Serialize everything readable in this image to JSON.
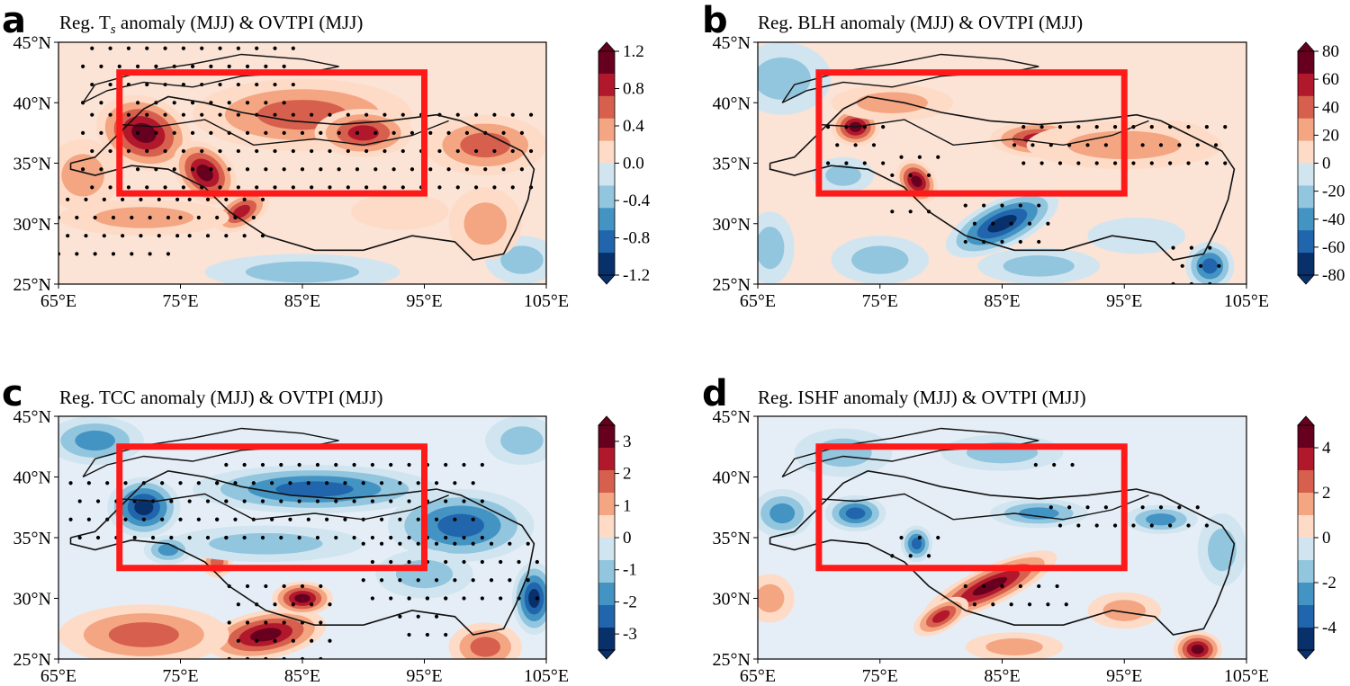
{
  "chart_data": [
    {
      "type": "heatmap",
      "panel": "a",
      "title_parts": [
        "Reg. T",
        "s",
        " anomaly (MJJ) & OVTPI (MJJ)"
      ],
      "xticks": [
        "65°E",
        "75°E",
        "85°E",
        "95°E",
        "105°E"
      ],
      "yticks": [
        "45°N",
        "40°N",
        "35°N",
        "30°N",
        "25°N"
      ],
      "xlim": [
        65,
        105
      ],
      "ylim": [
        25,
        45
      ],
      "colorbar_ticks": [
        "1.2",
        "0.8",
        "0.4",
        "0.0",
        "-0.4",
        "-0.8",
        "-1.2"
      ],
      "colorbar_range": [
        -1.2,
        1.2
      ],
      "box": {
        "lon": [
          70,
          95
        ],
        "lat": [
          32.5,
          42.5
        ]
      },
      "sign": 1
    },
    {
      "type": "heatmap",
      "panel": "b",
      "title_parts": [
        "Reg. BLH anomaly (MJJ) & OVTPI (MJJ)"
      ],
      "xticks": [
        "65°E",
        "75°E",
        "85°E",
        "95°E",
        "105°E"
      ],
      "yticks": [
        "45°N",
        "40°N",
        "35°N",
        "30°N",
        "25°N"
      ],
      "xlim": [
        65,
        105
      ],
      "ylim": [
        25,
        45
      ],
      "colorbar_ticks": [
        "80",
        "60",
        "40",
        "20",
        "0",
        "-20",
        "-40",
        "-60",
        "-80"
      ],
      "colorbar_range": [
        -80,
        80
      ],
      "box": {
        "lon": [
          70,
          95
        ],
        "lat": [
          32.5,
          42.5
        ]
      },
      "sign": 1
    },
    {
      "type": "heatmap",
      "panel": "c",
      "title_parts": [
        "Reg. TCC anomaly (MJJ) & OVTPI (MJJ)"
      ],
      "xticks": [
        "65°E",
        "75°E",
        "85°E",
        "95°E",
        "105°E"
      ],
      "yticks": [
        "45°N",
        "40°N",
        "35°N",
        "30°N",
        "25°N"
      ],
      "xlim": [
        65,
        105
      ],
      "ylim": [
        25,
        45
      ],
      "colorbar_ticks": [
        "3",
        "2",
        "1",
        "0",
        "-1",
        "-2",
        "-3"
      ],
      "colorbar_range": [
        -3.5,
        3.5
      ],
      "box": {
        "lon": [
          70,
          95
        ],
        "lat": [
          32.5,
          42.5
        ]
      },
      "sign": -1
    },
    {
      "type": "heatmap",
      "panel": "d",
      "title_parts": [
        "Reg. ISHF anomaly (MJJ) & OVTPI (MJJ)"
      ],
      "xticks": [
        "65°E",
        "75°E",
        "85°E",
        "95°E",
        "105°E"
      ],
      "yticks": [
        "45°N",
        "40°N",
        "35°N",
        "30°N",
        "25°N"
      ],
      "xlim": [
        65,
        105
      ],
      "ylim": [
        25,
        45
      ],
      "colorbar_ticks": [
        "4",
        "2",
        "0",
        "-2",
        "-4"
      ],
      "colorbar_range": [
        -5,
        5
      ],
      "box": {
        "lon": [
          70,
          95
        ],
        "lat": [
          32.5,
          42.5
        ]
      },
      "sign": -1
    }
  ],
  "colors": {
    "box": "#ff1a1a",
    "diverging": [
      "#08306b",
      "#2166ac",
      "#4393c3",
      "#92c5de",
      "#d1e5f0",
      "#f7f7f7",
      "#fddbc7",
      "#f4a582",
      "#d6604d",
      "#b2182b",
      "#67001f"
    ]
  }
}
